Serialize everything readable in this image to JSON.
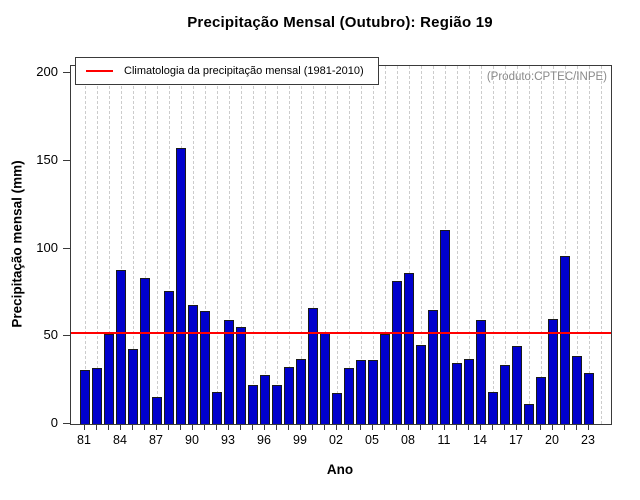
{
  "chart_data": {
    "type": "bar",
    "title": "Precipitação Mensal (Outubro): Região 19",
    "xlabel": "Ano",
    "ylabel": "Precipitação mensal (mm)",
    "ylim": [
      0,
      200
    ],
    "yticks": [
      0,
      50,
      100,
      150,
      200
    ],
    "grid": "vertical-dashed",
    "legend_label": "Climatologia da precipitação mensal (1981-2010)",
    "legend_position": "top-left",
    "annotation": "(Produto:CPTEC/INPE)",
    "climatology_value": 52,
    "categories": [
      "1981",
      "1982",
      "1983",
      "1984",
      "1985",
      "1986",
      "1987",
      "1988",
      "1989",
      "1990",
      "1991",
      "1992",
      "1993",
      "1994",
      "1995",
      "1996",
      "1997",
      "1998",
      "1999",
      "2000",
      "2001",
      "2002",
      "2003",
      "2004",
      "2005",
      "2006",
      "2007",
      "2008",
      "2009",
      "2010",
      "2011",
      "2012",
      "2013",
      "2014",
      "2015",
      "2016",
      "2017",
      "2018",
      "2019",
      "2020",
      "2021",
      "2022",
      "2023"
    ],
    "values": [
      31,
      32,
      51.5,
      88,
      42.5,
      83,
      15.5,
      76,
      157,
      68,
      64.5,
      18,
      59.5,
      55,
      22.5,
      28,
      22,
      32.5,
      37,
      66,
      52,
      17.5,
      32,
      36.5,
      36.5,
      51,
      81.5,
      86,
      45,
      65,
      110.5,
      35,
      37,
      59,
      18.5,
      33.5,
      44.5,
      11.5,
      26.5,
      60,
      96,
      39,
      29
    ],
    "xtick_labels": [
      "81",
      "84",
      "87",
      "90",
      "93",
      "96",
      "99",
      "02",
      "05",
      "08",
      "11",
      "14",
      "17",
      "20",
      "23"
    ],
    "xtick_label_every": 3,
    "colors": {
      "bar_fill": "#0000CD",
      "bar_border": "#1a1a1a",
      "climatology_line": "#ff0000",
      "gridline": "#cccccc",
      "annotation_text": "#8a8a8a",
      "axis": "#3a3a3a"
    }
  }
}
